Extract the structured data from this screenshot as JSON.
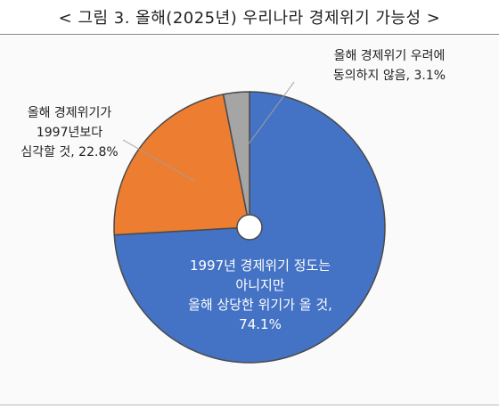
{
  "page": {
    "title": "< 그림 3. 올해(2025년) 우리나라 경제위기 가능성 >"
  },
  "chart_data": {
    "type": "pie",
    "title": "< 그림 3. 올해(2025년) 우리나라 경제위기 가능성 >",
    "slices": [
      {
        "label_lines": [
          "1997년 경제위기 정도는",
          "아니지만",
          "올해 상당한 위기가 올 것,",
          "74.1%"
        ],
        "value": 74.1,
        "color": "#4472C4"
      },
      {
        "label_lines": [
          "올해 경제위기가",
          "1997년보다",
          "심각할 것, 22.8%"
        ],
        "value": 22.8,
        "color": "#ED7D31"
      },
      {
        "label_lines": [
          "올해 경제위기 우려에",
          "동의하지 않음, 3.1%"
        ],
        "value": 3.1,
        "color": "#A5A5A5"
      }
    ],
    "start": "12 o'clock",
    "direction": "clockwise",
    "center_hole": true
  }
}
